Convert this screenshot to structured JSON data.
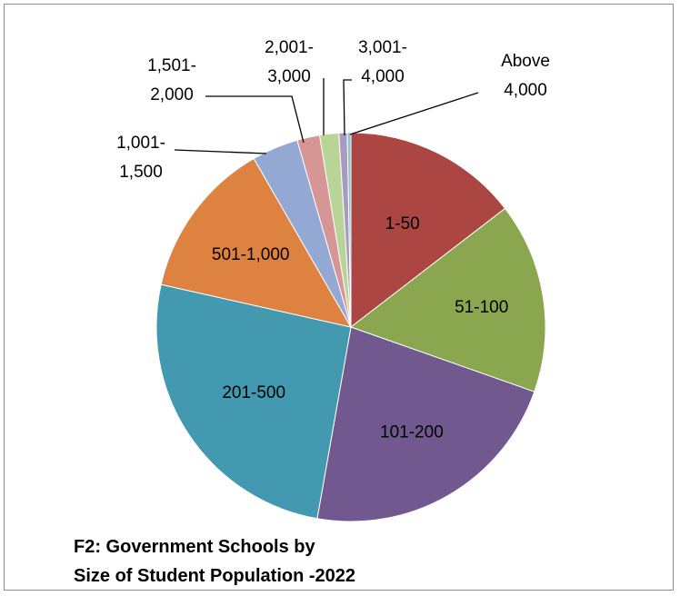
{
  "chart_data": {
    "type": "pie",
    "title_lines": [
      "F2: Government Schools by",
      "Size of Student Population -2022"
    ],
    "start_angle_deg": 0,
    "direction": "clockwise",
    "slices": [
      {
        "label": "1-50",
        "value": 14.7,
        "color": "#ab4642",
        "label_lines": [
          "1-50"
        ]
      },
      {
        "label": "51-100",
        "value": 16.0,
        "color": "#8aa64e",
        "label_lines": [
          "51-100"
        ]
      },
      {
        "label": "101-200",
        "value": 22.6,
        "color": "#71598f",
        "label_lines": [
          "101-200"
        ]
      },
      {
        "label": "201-500",
        "value": 26.0,
        "color": "#4299b0",
        "label_lines": [
          "201-500"
        ]
      },
      {
        "label": "501-1,000",
        "value": 13.3,
        "color": "#dd8240",
        "label_lines": [
          "501-1,000"
        ]
      },
      {
        "label": "1,001-1,500",
        "value": 3.9,
        "color": "#94a8d4",
        "label_lines": [
          "1,001-",
          "1,500"
        ]
      },
      {
        "label": "1,501-2,000",
        "value": 1.9,
        "color": "#d69696",
        "label_lines": [
          "1,501-",
          "2,000"
        ]
      },
      {
        "label": "2,001-3,000",
        "value": 1.6,
        "color": "#b8d497",
        "label_lines": [
          "2,001-",
          "3,000"
        ]
      },
      {
        "label": "3,001-4,000",
        "value": 0.7,
        "color": "#a89bc0",
        "label_lines": [
          "3,001-",
          "4,000"
        ]
      },
      {
        "label": "Above 4,000",
        "value": 0.3,
        "color": "#87c3d4",
        "label_lines": [
          "Above",
          "4,000"
        ]
      }
    ]
  }
}
